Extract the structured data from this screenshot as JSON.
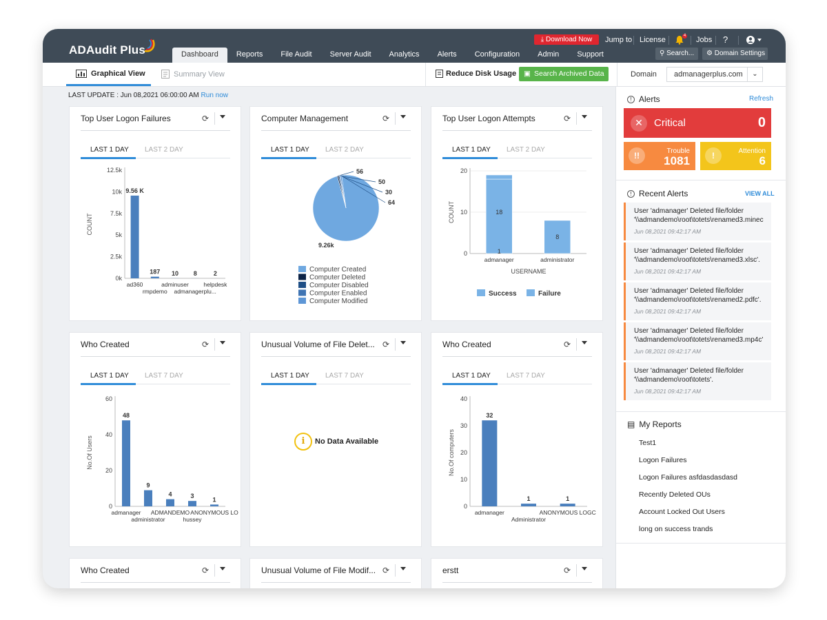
{
  "app": {
    "name": "ADAudit Plus"
  },
  "header": {
    "tabs": [
      "Dashboard",
      "Reports",
      "File Audit",
      "Server Audit",
      "Analytics",
      "Alerts",
      "Configuration",
      "Admin",
      "Support"
    ],
    "active_tab": "Dashboard",
    "download_label": "Download Now",
    "jump_to": "Jump to",
    "license": "License",
    "bell_count": "4",
    "jobs": "Jobs",
    "help": "?",
    "search_label": "Search...",
    "domain_settings": "Domain Settings"
  },
  "subbar": {
    "graphical_view": "Graphical View",
    "summary_view": "Summary View",
    "reduce_disk": "Reduce Disk Usage",
    "search_archived": "Search Archived Data",
    "domain_label": "Domain",
    "domain_value": "admanagerplus.com"
  },
  "last_update": {
    "text": "LAST UPDATE : Jun 08,2021 06:00:00 AM",
    "run_now": "Run now"
  },
  "widgets": [
    {
      "title": "Top User Logon Failures",
      "tab1": "LAST 1 DAY",
      "tab2": "LAST 2 DAY"
    },
    {
      "title": "Computer Management",
      "tab1": "LAST 1 DAY",
      "tab2": "LAST 2 DAY"
    },
    {
      "title": "Top User Logon Attempts",
      "tab1": "LAST 1 DAY",
      "tab2": "LAST 2 DAY"
    },
    {
      "title": "Who Created",
      "tab1": "LAST 1 DAY",
      "tab2": "LAST 7 DAY"
    },
    {
      "title": "Unusual Volume of File Delet...",
      "tab1": "LAST 1 DAY",
      "tab2": "LAST 7 DAY",
      "no_data": "No Data Available"
    },
    {
      "title": "Who Created",
      "tab1": "LAST 1 DAY",
      "tab2": "LAST 7 DAY"
    },
    {
      "title": "Who Created"
    },
    {
      "title": "Unusual Volume of File Modif..."
    },
    {
      "title": "erstt"
    }
  ],
  "chart_data": [
    {
      "type": "bar",
      "ylabel": "COUNT",
      "yticks": [
        "0k",
        "2.5k",
        "5k",
        "7.5k",
        "10k",
        "12.5k"
      ],
      "ylim": [
        0,
        12500
      ],
      "categories": [
        "ad360",
        "rmpdemo",
        "adminuser",
        "admanagerplu...",
        "helpdesk"
      ],
      "values": [
        9560,
        187,
        10,
        8,
        2
      ],
      "value_labels": [
        "9.56 K",
        "187",
        "10",
        "8",
        "2"
      ],
      "color": "#4a7fbd"
    },
    {
      "type": "pie",
      "slices": [
        {
          "name": "Computer Created",
          "value": 9260,
          "label": "9.26k",
          "color": "#6fa8e0"
        },
        {
          "name": "Computer Deleted",
          "value": 56,
          "label": "56",
          "color": "#0d2347"
        },
        {
          "name": "Computer Disabled",
          "value": 50,
          "label": "50",
          "color": "#1f4f86"
        },
        {
          "name": "Computer Enabled",
          "value": 30,
          "label": "30",
          "color": "#3f74b3"
        },
        {
          "name": "Computer Modified",
          "value": 64,
          "label": "64",
          "color": "#5d96d6"
        }
      ]
    },
    {
      "type": "bar",
      "stacked": true,
      "ylabel": "COUNT",
      "xlabel": "USERNAME",
      "yticks": [
        "0",
        "10",
        "20"
      ],
      "ylim": [
        0,
        20
      ],
      "categories": [
        "admanager",
        "administrator"
      ],
      "series": [
        {
          "name": "Success",
          "values": [
            18,
            8
          ],
          "color": "#7ab3e6"
        },
        {
          "name": "Failure",
          "values": [
            1,
            0
          ],
          "color": "#7ab3e6"
        }
      ],
      "segment_labels": [
        [
          "1",
          "18"
        ],
        [
          "8"
        ]
      ]
    },
    {
      "type": "bar",
      "ylabel": "No.Of Users",
      "yticks": [
        "0",
        "20",
        "40",
        "60"
      ],
      "ylim": [
        0,
        60
      ],
      "categories": [
        "admanager",
        "administrator",
        "ADMANDEMO",
        "hussey",
        "ANONYMOUS LO"
      ],
      "values": [
        48,
        9,
        4,
        3,
        1
      ],
      "color": "#4a7fbd"
    },
    {
      "type": "bar",
      "ylabel": "No.Of computers",
      "yticks": [
        "0",
        "10",
        "20",
        "30",
        "40"
      ],
      "ylim": [
        0,
        40
      ],
      "categories": [
        "admanager",
        "Administrator",
        "ANONYMOUS LOGC"
      ],
      "values": [
        32,
        1,
        1
      ],
      "color": "#4a7fbd"
    }
  ],
  "alerts": {
    "title": "Alerts",
    "refresh": "Refresh",
    "critical_label": "Critical",
    "critical_value": "0",
    "trouble_label": "Trouble",
    "trouble_value": "1081",
    "attention_label": "Attention",
    "attention_value": "6"
  },
  "recent_alerts": {
    "title": "Recent Alerts",
    "view_all": "VIEW ALL",
    "items": [
      {
        "line1": "User 'admanager' Deleted file/folder",
        "line2": "'\\\\admandemo\\root\\totets\\renamed3.minec",
        "time": "Jun 08,2021 09:42:17 AM"
      },
      {
        "line1": "User 'admanager' Deleted file/folder",
        "line2": "'\\\\admandemo\\root\\totets\\renamed3.xlsc'.",
        "time": "Jun 08,2021 09:42:17 AM"
      },
      {
        "line1": "User 'admanager' Deleted file/folder",
        "line2": "'\\\\admandemo\\root\\totets\\renamed2.pdfc'.",
        "time": "Jun 08,2021 09:42:17 AM"
      },
      {
        "line1": "User 'admanager' Deleted file/folder",
        "line2": "'\\\\admandemo\\root\\totets\\renamed3.mp4c'",
        "time": "Jun 08,2021 09:42:17 AM"
      },
      {
        "line1": "User 'admanager' Deleted file/folder",
        "line2": "'\\\\admandemo\\root\\totets'.",
        "time": "Jun 08,2021 09:42:17 AM"
      }
    ]
  },
  "my_reports": {
    "title": "My Reports",
    "items": [
      "Test1",
      "Logon Failures",
      "Logon Failures asfdasdasdasd",
      "Recently Deleted OUs",
      "Account Locked Out Users",
      "long on success trands"
    ]
  }
}
